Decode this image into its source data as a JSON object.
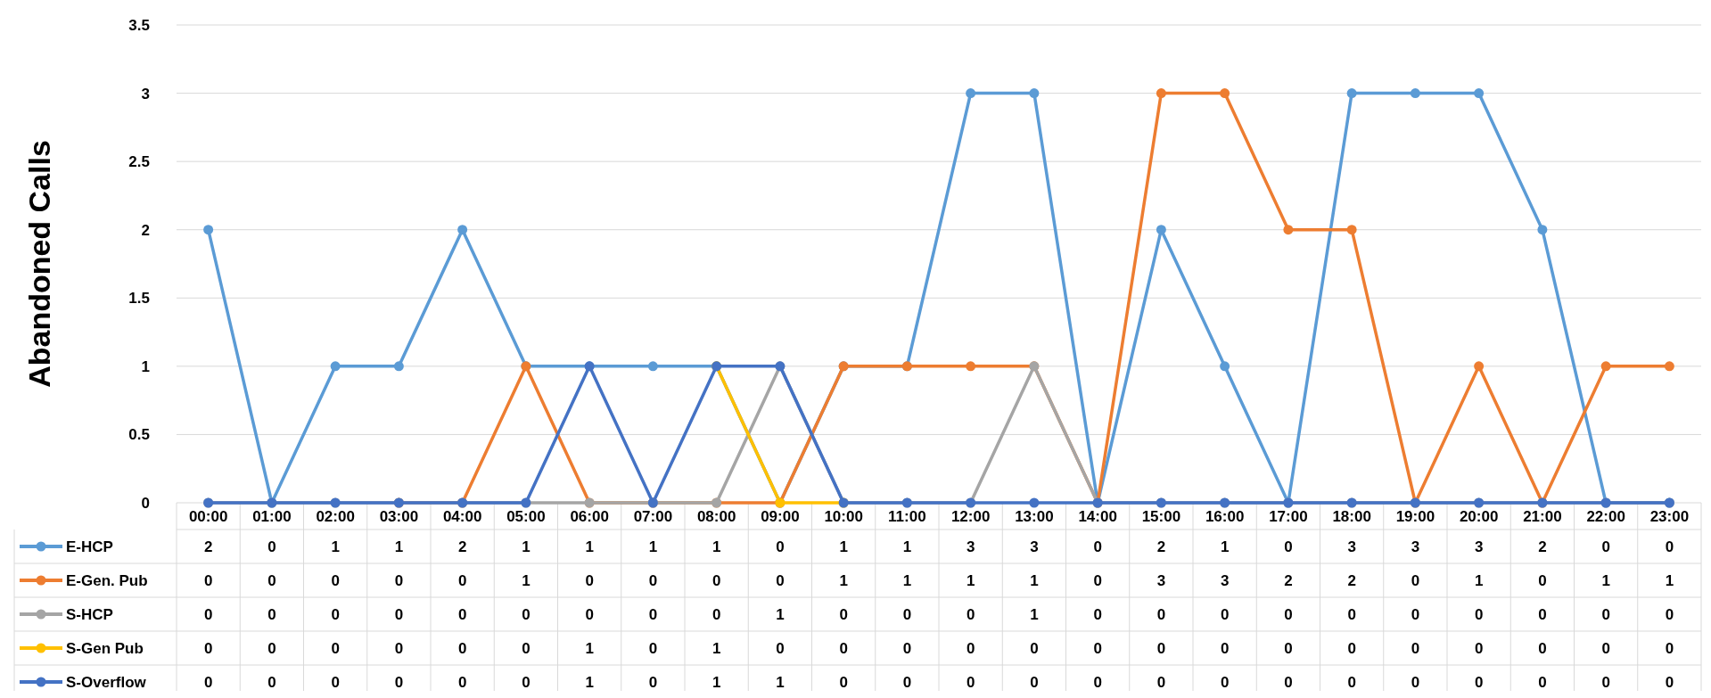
{
  "chart_data": {
    "type": "line",
    "ylabel": "Abandoned Calls",
    "categories": [
      "00:00",
      "01:00",
      "02:00",
      "03:00",
      "04:00",
      "05:00",
      "06:00",
      "07:00",
      "08:00",
      "09:00",
      "10:00",
      "11:00",
      "12:00",
      "13:00",
      "14:00",
      "15:00",
      "16:00",
      "17:00",
      "18:00",
      "19:00",
      "20:00",
      "21:00",
      "22:00",
      "23:00"
    ],
    "series": [
      {
        "name": "E-HCP",
        "color": "#5b9bd5",
        "values": [
          2,
          0,
          1,
          1,
          2,
          1,
          1,
          1,
          1,
          0,
          1,
          1,
          3,
          3,
          0,
          2,
          1,
          0,
          3,
          3,
          3,
          2,
          0,
          0
        ],
        "value_labels": [
          "2",
          "0",
          "1",
          "1",
          "2",
          "1",
          "1",
          "1",
          "1",
          "0",
          "1",
          "1",
          "3",
          "3",
          "0",
          "2",
          "1",
          "0",
          "3",
          "3",
          "3",
          "2",
          "0",
          "0"
        ]
      },
      {
        "name": "E-Gen. Pub",
        "color": "#ed7d31",
        "values": [
          null,
          null,
          null,
          0,
          0,
          1,
          0,
          0,
          0,
          0,
          1,
          1,
          1,
          1,
          0,
          3,
          3,
          2,
          2,
          0,
          1,
          0,
          1,
          1
        ],
        "value_labels": [
          "0",
          "0",
          "0",
          "0",
          "0",
          "1",
          "0",
          "0",
          "0",
          "0",
          "1",
          "1",
          "1",
          "1",
          "0",
          "3",
          "3",
          "2",
          "2",
          "0",
          "1",
          "0",
          "1",
          "1"
        ]
      },
      {
        "name": "S-HCP",
        "color": "#a5a5a5",
        "values": [
          0,
          0,
          0,
          0,
          0,
          0,
          0,
          0,
          0,
          1,
          0,
          0,
          0,
          1,
          0,
          0,
          0,
          0,
          0,
          0,
          0,
          0,
          0,
          0
        ],
        "value_labels": [
          "0",
          "0",
          "0",
          "0",
          "0",
          "0",
          "0",
          "0",
          "0",
          "1",
          "0",
          "0",
          "0",
          "1",
          "0",
          "0",
          "0",
          "0",
          "0",
          "0",
          "0",
          "0",
          "0",
          "0"
        ]
      },
      {
        "name": "S-Gen Pub",
        "color": "#ffc000",
        "values": [
          null,
          null,
          null,
          null,
          null,
          null,
          null,
          null,
          1,
          0,
          0,
          null,
          null,
          null,
          null,
          null,
          null,
          null,
          null,
          null,
          null,
          null,
          null,
          null
        ],
        "value_labels": [
          "0",
          "0",
          "0",
          "0",
          "0",
          "0",
          "1",
          "0",
          "1",
          "0",
          "0",
          "0",
          "0",
          "0",
          "0",
          "0",
          "0",
          "0",
          "0",
          "0",
          "0",
          "0",
          "0",
          "0"
        ]
      },
      {
        "name": "S-Overflow",
        "color": "#4472c4",
        "values": [
          0,
          0,
          0,
          0,
          0,
          0,
          1,
          0,
          1,
          1,
          0,
          0,
          0,
          0,
          0,
          0,
          0,
          0,
          0,
          0,
          0,
          0,
          0,
          0
        ],
        "value_labels": [
          "0",
          "0",
          "0",
          "0",
          "0",
          "0",
          "1",
          "0",
          "1",
          "1",
          "0",
          "0",
          "0",
          "0",
          "0",
          "0",
          "0",
          "0",
          "0",
          "0",
          "0",
          "0",
          "0",
          "0"
        ]
      }
    ],
    "ylim": [
      0,
      3.5
    ],
    "yticks": [
      0,
      0.5,
      1,
      1.5,
      2,
      2.5,
      3,
      3.5
    ],
    "grid": "y",
    "legend": "bottom",
    "marker": "circle",
    "line_style": "solid"
  }
}
